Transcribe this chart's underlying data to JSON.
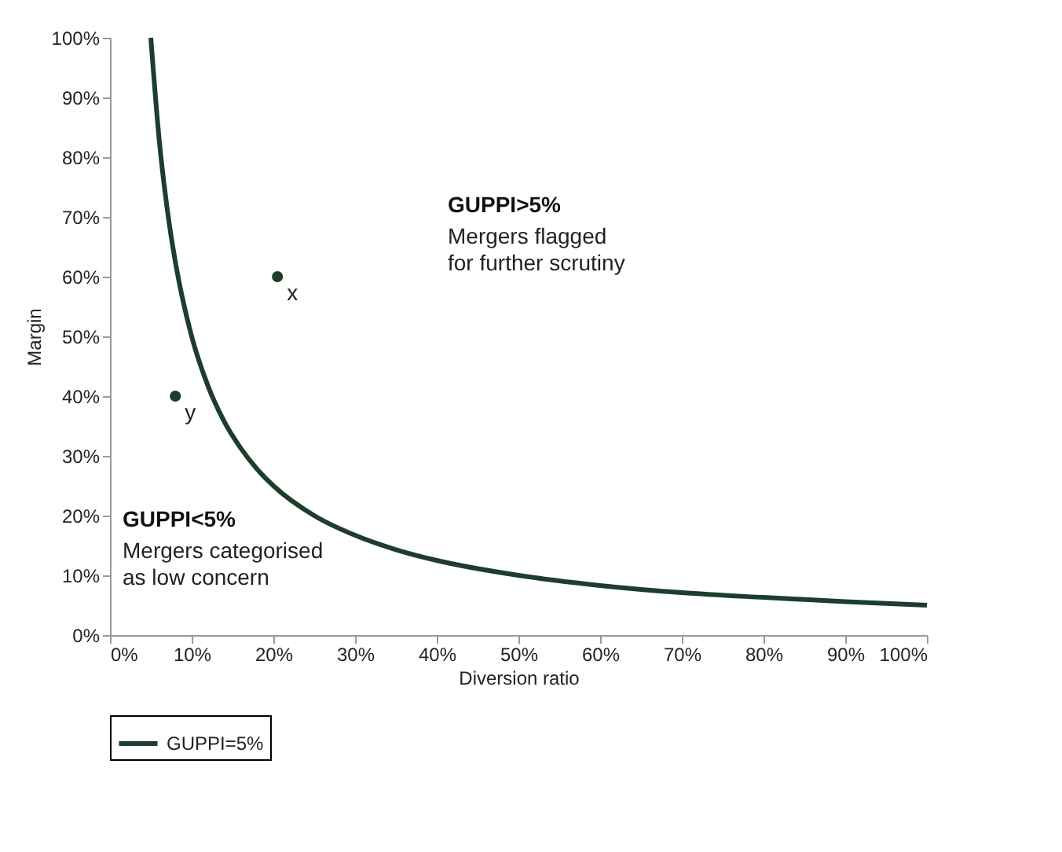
{
  "chart_data": {
    "type": "line",
    "xlabel": "Diversion ratio",
    "ylabel": "Margin",
    "xlim": [
      0,
      100
    ],
    "ylim": [
      0,
      100
    ],
    "xticks": [
      {
        "value": 0,
        "label": "0%"
      },
      {
        "value": 10,
        "label": "10%"
      },
      {
        "value": 20,
        "label": "20%"
      },
      {
        "value": 30,
        "label": "30%"
      },
      {
        "value": 40,
        "label": "40%"
      },
      {
        "value": 50,
        "label": "50%"
      },
      {
        "value": 60,
        "label": "60%"
      },
      {
        "value": 70,
        "label": "70%"
      },
      {
        "value": 80,
        "label": "80%"
      },
      {
        "value": 90,
        "label": "90%"
      },
      {
        "value": 100,
        "label": "100%"
      }
    ],
    "yticks": [
      {
        "value": 0,
        "label": "0%"
      },
      {
        "value": 10,
        "label": "10%"
      },
      {
        "value": 20,
        "label": "20%"
      },
      {
        "value": 30,
        "label": "30%"
      },
      {
        "value": 40,
        "label": "40%"
      },
      {
        "value": 50,
        "label": "50%"
      },
      {
        "value": 60,
        "label": "60%"
      },
      {
        "value": 70,
        "label": "70%"
      },
      {
        "value": 80,
        "label": "80%"
      },
      {
        "value": 90,
        "label": "90%"
      },
      {
        "value": 100,
        "label": "100%"
      }
    ],
    "grid": false,
    "legend": "bottom",
    "line_style": "solid",
    "series": [
      {
        "name": "GUPPI=5%",
        "color": "#1e3d2a",
        "type": "line",
        "marker": "none",
        "x": [
          5,
          6,
          7,
          8,
          9,
          10,
          12,
          14,
          16,
          18,
          20,
          25,
          30,
          35,
          40,
          50,
          60,
          70,
          80,
          90,
          100
        ],
        "values": [
          100,
          83.3,
          71.4,
          62.5,
          55.6,
          50,
          41.7,
          35.7,
          31.3,
          27.8,
          25,
          20,
          16.7,
          14.3,
          12.5,
          10,
          8.3,
          7.1,
          6.3,
          5.6,
          5
        ]
      },
      {
        "color": "#1e3d2a",
        "type": "scatter",
        "marker": "circle",
        "x": [
          20.5,
          8
        ],
        "values": [
          60,
          40
        ]
      }
    ],
    "annotations": [
      {
        "text": "x",
        "x": 20.5,
        "y": 60
      },
      {
        "text": "y",
        "x": 8,
        "y": 40
      },
      "GUPPI>5%\nMergers flagged\nfor further scrutiny",
      "GUPPI<5%\nMergers categorised\nas low concern"
    ]
  }
}
